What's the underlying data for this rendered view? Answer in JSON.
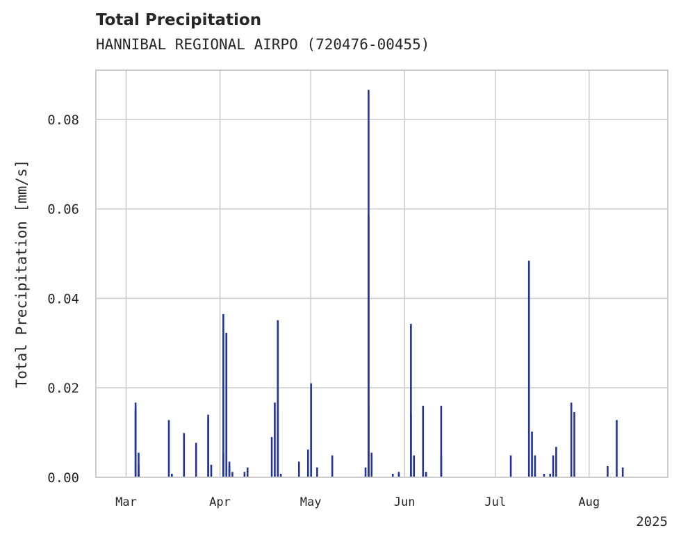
{
  "chart_data": {
    "type": "bar",
    "title": "Total Precipitation",
    "subtitle": "HANNIBAL REGIONAL AIRPO (720476-00455)",
    "xlabel": "",
    "ylabel": "Total Precipitation [mm/s]",
    "xlim": [
      "2025-02-19",
      "2025-08-27"
    ],
    "ylim": [
      0,
      0.091
    ],
    "yticks": [
      0,
      0.02,
      0.04,
      0.06,
      0.08
    ],
    "ytick_labels": [
      "0.00",
      "0.02",
      "0.04",
      "0.06",
      "0.08"
    ],
    "xticks": [
      "2025-03-01",
      "2025-04-01",
      "2025-05-01",
      "2025-06-01",
      "2025-07-01",
      "2025-08-01"
    ],
    "xtick_labels": [
      "Mar",
      "Apr",
      "May",
      "Jun",
      "Jul",
      "Aug"
    ],
    "x_offset_label": "2025",
    "grid": true,
    "color": "#23339a",
    "series": [
      {
        "x": [
          "2025-03-04",
          "2025-03-04",
          "2025-03-05",
          "2025-03-05",
          "2025-03-05",
          "2025-03-15",
          "2025-03-16",
          "2025-03-20",
          "2025-03-20",
          "2025-03-24",
          "2025-03-28",
          "2025-03-28",
          "2025-03-29",
          "2025-04-02",
          "2025-04-02",
          "2025-04-03",
          "2025-04-04",
          "2025-04-04",
          "2025-04-05",
          "2025-04-09",
          "2025-04-10",
          "2025-04-18",
          "2025-04-19",
          "2025-04-20",
          "2025-04-20",
          "2025-04-21",
          "2025-04-27",
          "2025-04-30",
          "2025-05-01",
          "2025-05-03",
          "2025-05-08",
          "2025-05-19",
          "2025-05-20",
          "2025-05-20",
          "2025-05-20",
          "2025-05-21",
          "2025-05-28",
          "2025-05-30",
          "2025-05-30",
          "2025-06-03",
          "2025-06-03",
          "2025-06-04",
          "2025-06-07",
          "2025-06-08",
          "2025-06-08",
          "2025-06-13",
          "2025-06-13",
          "2025-07-06",
          "2025-07-12",
          "2025-07-13",
          "2025-07-14",
          "2025-07-14",
          "2025-07-17",
          "2025-07-19",
          "2025-07-20",
          "2025-07-21",
          "2025-07-26",
          "2025-07-27",
          "2025-08-07",
          "2025-08-10",
          "2025-08-12"
        ],
        "values": [
          0.0153,
          0.0167,
          0.0055,
          0.0028,
          0.0008,
          0.0128,
          0.0008,
          0.0099,
          0.0008,
          0.0077,
          0.0133,
          0.014,
          0.0028,
          0.0055,
          0.0365,
          0.0323,
          0.0035,
          0.0025,
          0.0012,
          0.0012,
          0.0022,
          0.009,
          0.0167,
          0.0148,
          0.0351,
          0.0008,
          0.0035,
          0.0062,
          0.021,
          0.0022,
          0.0049,
          0.0022,
          0.0866,
          0.0585,
          0.016,
          0.0055,
          0.0008,
          0.0008,
          0.0012,
          0.014,
          0.0343,
          0.0049,
          0.016,
          0.0012,
          0.0012,
          0.016,
          0.0049,
          0.0049,
          0.0484,
          0.0102,
          0.0008,
          0.0049,
          0.0008,
          0.0008,
          0.0049,
          0.0068,
          0.0167,
          0.0146,
          0.0025,
          0.0128,
          0.0022
        ]
      }
    ]
  }
}
